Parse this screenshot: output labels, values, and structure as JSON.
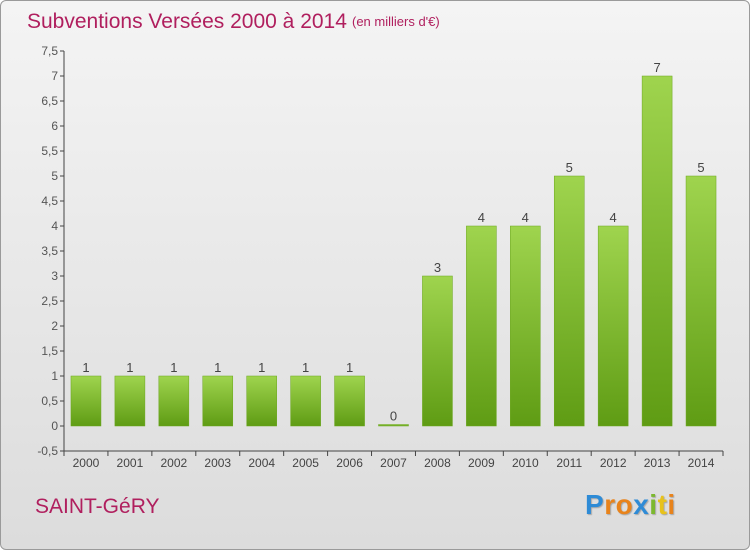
{
  "header": {
    "title": "Subventions Versées 2000 à 2014",
    "unit_note": "(en milliers d'€)"
  },
  "footer": {
    "place": "SAINT-GéRY",
    "brand": "Proxiti"
  },
  "colors": {
    "accent": "#b01f5e",
    "bar_light": "#9fd44e",
    "bar_dark": "#5f9c14",
    "axis": "#444444"
  },
  "chart_data": {
    "type": "bar",
    "categories": [
      "2000",
      "2001",
      "2002",
      "2003",
      "2004",
      "2005",
      "2006",
      "2007",
      "2008",
      "2009",
      "2010",
      "2011",
      "2012",
      "2013",
      "2014"
    ],
    "values": [
      1,
      1,
      1,
      1,
      1,
      1,
      1,
      0,
      3,
      4,
      4,
      5,
      4,
      7,
      5
    ],
    "data_labels": [
      "1",
      "1",
      "1",
      "1",
      "1",
      "1",
      "1",
      "0",
      "3",
      "4",
      "4",
      "5",
      "4",
      "7",
      "5"
    ],
    "title": "Subventions Versées 2000 à 2014",
    "subtitle": "(en milliers d'€)",
    "xlabel": "",
    "ylabel": "",
    "ylim": [
      -0.5,
      7.5
    ],
    "yticks": [
      "-0,5",
      "0",
      "0,5",
      "1",
      "1,5",
      "2",
      "2,5",
      "3",
      "3,5",
      "4",
      "4,5",
      "5",
      "5,5",
      "6",
      "6,5",
      "7",
      "7,5"
    ],
    "ytick_values": [
      -0.5,
      0,
      0.5,
      1,
      1.5,
      2,
      2.5,
      3,
      3.5,
      4,
      4.5,
      5,
      5.5,
      6,
      6.5,
      7,
      7.5
    ],
    "grid": false,
    "legend": "none"
  }
}
